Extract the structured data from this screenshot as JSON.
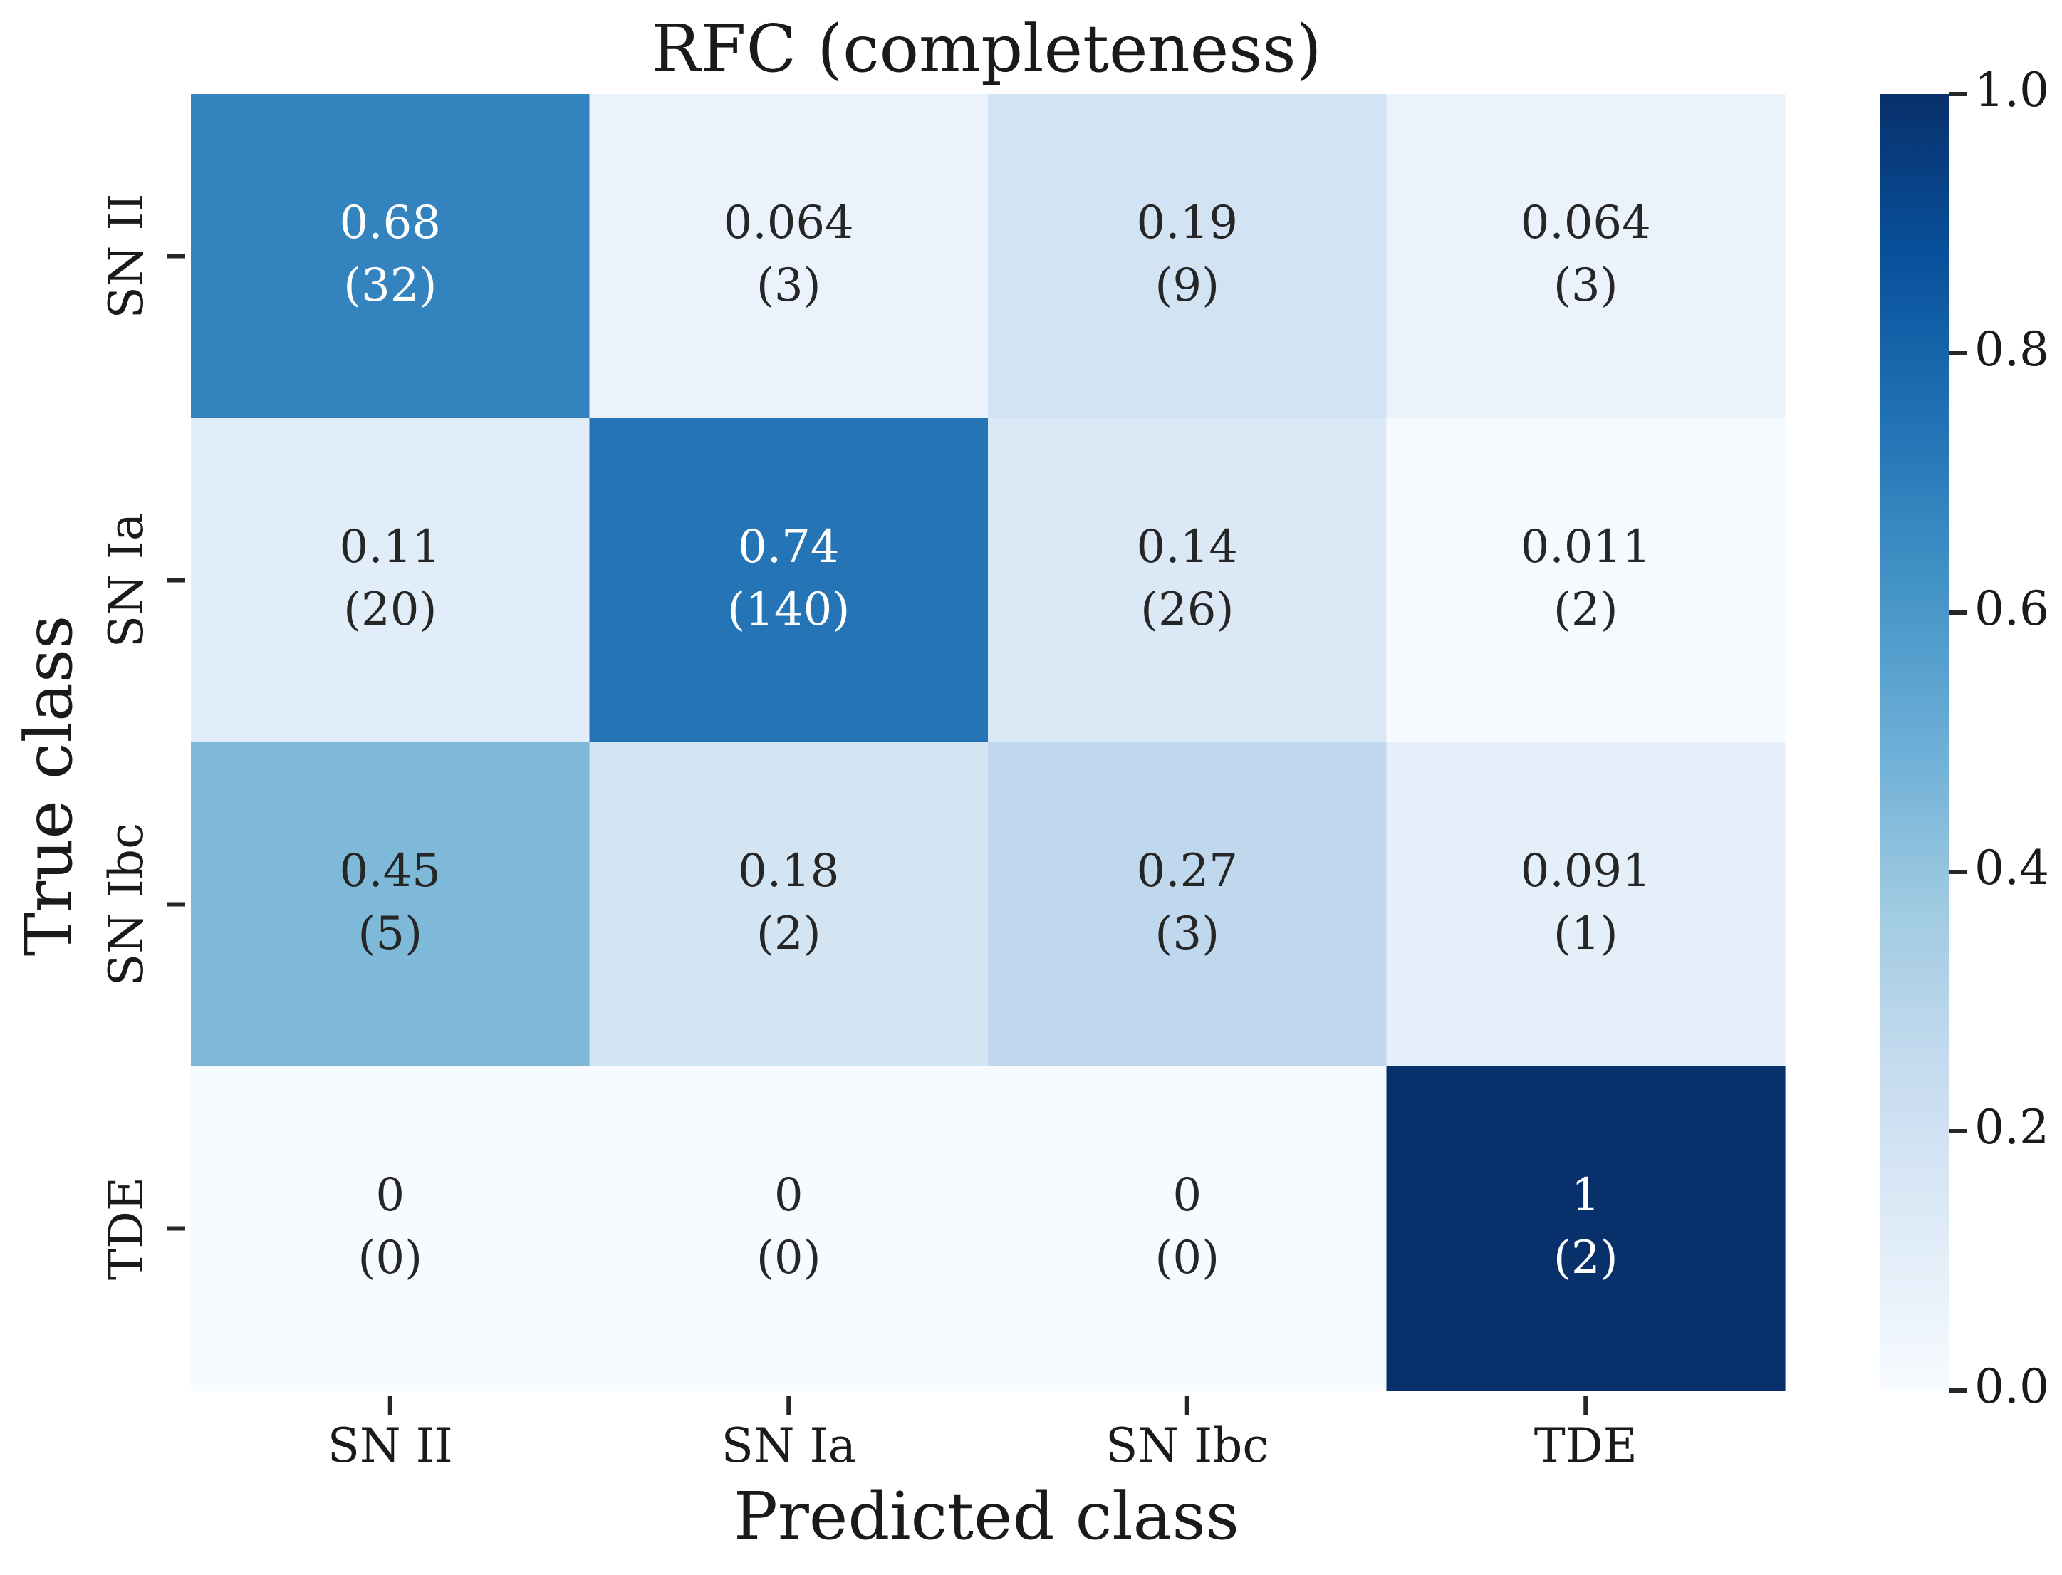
{
  "chart_data": {
    "type": "heatmap",
    "title": "RFC (completeness)",
    "xlabel": "Predicted class",
    "ylabel": "True class",
    "x_categories": [
      "SN II",
      "SN Ia",
      "SN Ibc",
      "TDE"
    ],
    "y_categories": [
      "SN II",
      "SN Ia",
      "SN Ibc",
      "TDE"
    ],
    "values": [
      [
        0.68,
        0.064,
        0.19,
        0.064
      ],
      [
        0.11,
        0.74,
        0.14,
        0.011
      ],
      [
        0.45,
        0.18,
        0.27,
        0.091
      ],
      [
        0,
        0,
        0,
        1
      ]
    ],
    "value_labels": [
      [
        "0.68",
        "0.064",
        "0.19",
        "0.064"
      ],
      [
        "0.11",
        "0.74",
        "0.14",
        "0.011"
      ],
      [
        "0.45",
        "0.18",
        "0.27",
        "0.091"
      ],
      [
        "0",
        "0",
        "0",
        "1"
      ]
    ],
    "counts": [
      [
        32,
        3,
        9,
        3
      ],
      [
        20,
        140,
        26,
        2
      ],
      [
        5,
        2,
        3,
        1
      ],
      [
        0,
        0,
        0,
        2
      ]
    ],
    "colorbar": {
      "range": [
        0.0,
        1.0
      ],
      "ticks": [
        "0.0",
        "0.2",
        "0.4",
        "0.6",
        "0.8",
        "1.0"
      ],
      "colormap": "Blues"
    },
    "colors": {
      "low": "#f7fbff",
      "high": "#08306b",
      "text_dark": "#262626",
      "text_light": "#ffffff"
    }
  }
}
